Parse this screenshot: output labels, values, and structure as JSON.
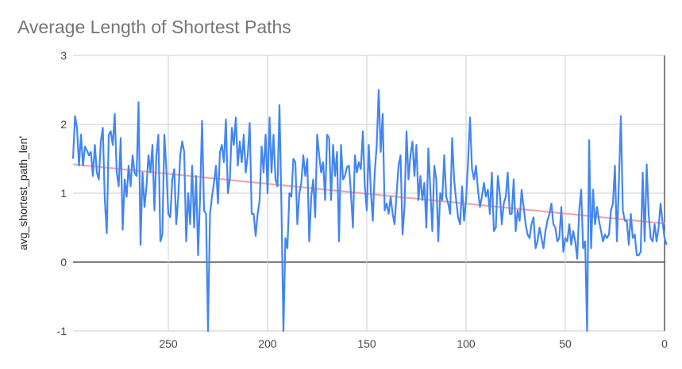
{
  "chart_data": {
    "type": "line",
    "title": "Average Length of Shortest Paths",
    "xlabel": "",
    "ylabel": "avg_shortest_path_len'",
    "x_reversed": true,
    "xlim": [
      298,
      0
    ],
    "ylim": [
      -1,
      3
    ],
    "x_ticks": [
      250,
      200,
      150,
      100,
      50,
      0
    ],
    "y_ticks": [
      3,
      2,
      1,
      0,
      -1
    ],
    "grid": true,
    "legend": "none",
    "colors": {
      "series": "#4285f4",
      "trendline": "#f4a6a6",
      "grid": "#cccccc",
      "zero_line": "#333333",
      "title": "#757575",
      "tick": "#444444"
    },
    "trendline": {
      "type": "linear",
      "points": [
        [
          298,
          1.42
        ],
        [
          0,
          0.56
        ]
      ]
    },
    "series": [
      {
        "x_start": 298,
        "x_step": -1,
        "values": [
          1.5,
          2.12,
          1.95,
          1.4,
          1.85,
          1.4,
          1.68,
          1.62,
          1.55,
          1.6,
          1.25,
          1.7,
          1.3,
          1.2,
          1.75,
          1.95,
          0.9,
          0.42,
          1.85,
          1.9,
          1.7,
          2.15,
          1.3,
          1.1,
          1.8,
          0.47,
          1.2,
          0.95,
          1.4,
          1.1,
          1.55,
          1.3,
          1.25,
          2.32,
          0.25,
          1.3,
          0.8,
          1.1,
          1.55,
          1.3,
          1.7,
          0.75,
          1.55,
          1.85,
          0.3,
          0.4,
          1.85,
          1.35,
          0.7,
          0.65,
          1.2,
          1.35,
          0.55,
          0.95,
          1.55,
          1.75,
          1.6,
          0.3,
          1.0,
          0.55,
          1.4,
          0.5,
          1.25,
          0.1,
          0.95,
          2.05,
          0.75,
          0.7,
          -1.0,
          0.7,
          0.95,
          1.15,
          1.4,
          0.85,
          1.6,
          1.7,
          1.45,
          2.07,
          1.0,
          1.2,
          1.95,
          1.7,
          2.1,
          1.4,
          1.75,
          1.45,
          1.85,
          1.3,
          1.55,
          2.02,
          0.7,
          0.7,
          0.38,
          0.7,
          0.9,
          1.68,
          1.3,
          1.85,
          1.0,
          2.1,
          1.3,
          1.85,
          1.2,
          1.1,
          2.28,
          0.8,
          -1.0,
          0.35,
          0.2,
          1.0,
          0.95,
          1.5,
          1.45,
          0.55,
          1.0,
          1.15,
          1.55,
          1.25,
          1.5,
          0.3,
          0.95,
          1.2,
          0.65,
          1.85,
          1.55,
          1.3,
          1.45,
          0.9,
          1.85,
          1.8,
          0.9,
          1.7,
          1.25,
          1.6,
          0.3,
          1.7,
          1.2,
          1.25,
          1.38,
          1.4,
          1.0,
          0.5,
          1.55,
          1.3,
          1.45,
          1.35,
          1.9,
          1.1,
          0.75,
          1.7,
          1.05,
          0.6,
          1.3,
          1.7,
          2.5,
          1.6,
          2.15,
          0.75,
          0.85,
          0.7,
          0.95,
          0.7,
          0.55,
          1.0,
          1.4,
          1.55,
          0.4,
          0.8,
          1.9,
          1.2,
          1.55,
          1.75,
          1.25,
          1.7,
          0.9,
          1.25,
          0.9,
          1.15,
          0.5,
          1.65,
          1.05,
          0.45,
          1.4,
          1.2,
          0.3,
          1.0,
          0.9,
          1.55,
          0.95,
          0.85,
          0.7,
          1.8,
          1.2,
          0.9,
          0.65,
          0.55,
          1.1,
          0.6,
          0.9,
          1.45,
          2.1,
          1.35,
          1.2,
          1.4,
          1.05,
          0.8,
          0.95,
          1.15,
          0.95,
          1.05,
          0.7,
          1.3,
          0.45,
          0.5,
          1.25,
          1.0,
          0.55,
          0.85,
          0.95,
          1.3,
          0.7,
          0.7,
          1.2,
          0.45,
          0.75,
          0.6,
          1.05,
          0.8,
          0.55,
          0.4,
          0.35,
          0.55,
          0.65,
          0.2,
          0.3,
          0.5,
          0.35,
          0.2,
          0.45,
          0.6,
          0.7,
          0.85,
          0.55,
          0.5,
          0.3,
          0.35,
          0.8,
          0.15,
          0.35,
          0.3,
          0.55,
          0.25,
          0.45,
          0.3,
          0.05,
          0.75,
          1.05,
          0.2,
          0.3,
          -1.0,
          1.77,
          0.2,
          1.05,
          0.55,
          0.8,
          0.6,
          0.45,
          0.3,
          0.4,
          0.35,
          0.4,
          0.75,
          0.85,
          1.4,
          0.3,
          1.15,
          2.12,
          0.75,
          0.6,
          0.6,
          0.25,
          0.7,
          0.35,
          0.4,
          0.1,
          0.1,
          0.15,
          1.3,
          0.3,
          1.42,
          0.7,
          0.35,
          0.3,
          0.55,
          0.3,
          0.5,
          0.85,
          0.58,
          0.35,
          0.25
        ]
      }
    ]
  }
}
